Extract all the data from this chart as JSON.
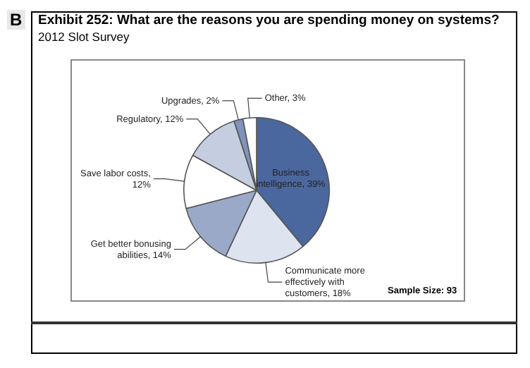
{
  "chart_data": {
    "type": "pie",
    "title": "Exhibit 252: What are the reasons you are spending money on systems?",
    "subtitle": "2012 Slot Survey",
    "categories": [
      "Business intelligence, 39%",
      "Communicate more effectively with customers, 18%",
      "Get better bonusing abilities, 14%",
      "Save labor costs, 12%",
      "Regulatory, 12%",
      "Upgrades, 2%",
      "Other, 3%"
    ],
    "values": [
      39,
      18,
      14,
      12,
      12,
      2,
      3
    ],
    "colors": [
      "#4a679e",
      "#dde3ef",
      "#9aa9c8",
      "#ffffff",
      "#c5cee0",
      "#7f93bb",
      "#ffffff"
    ],
    "legend": false,
    "annotations": [
      "B",
      "Sample Size: 93"
    ]
  }
}
